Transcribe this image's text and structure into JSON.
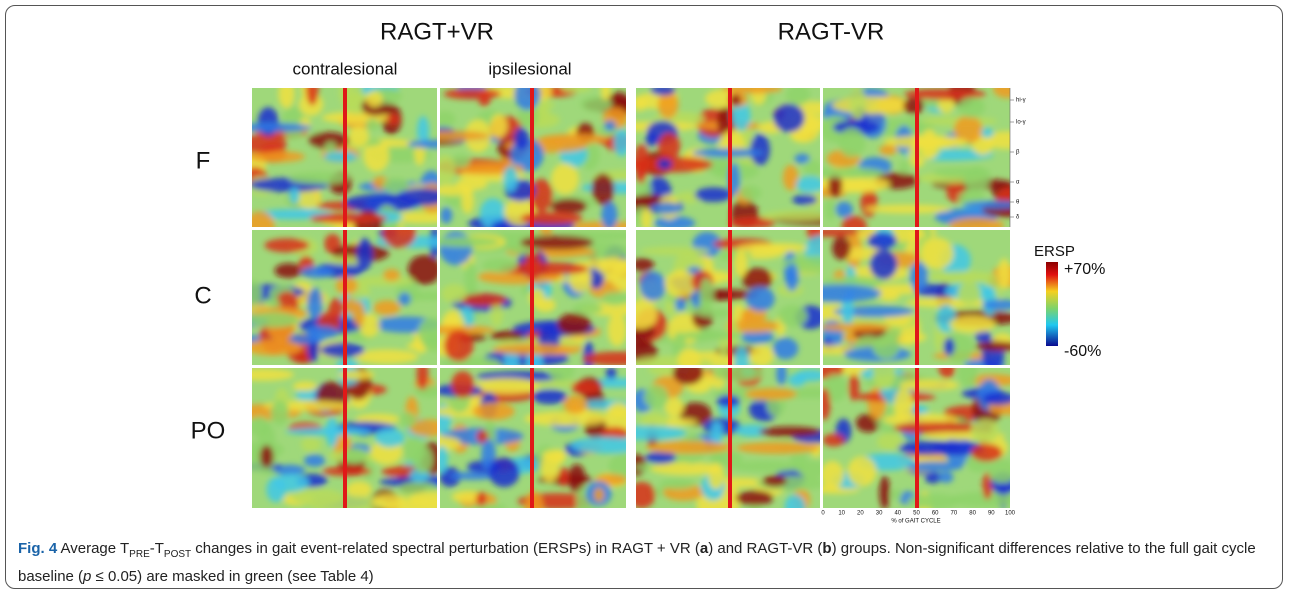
{
  "figure": {
    "group_titles": [
      "RAGT+VR",
      "RAGT-VR"
    ],
    "column_labels": [
      "contralesional",
      "ipsilesional"
    ],
    "row_labels": [
      "F",
      "C",
      "PO"
    ],
    "colorbar": {
      "label": "ERSP",
      "max_label": "+70%",
      "min_label": "-60%"
    },
    "band_labels": [
      "hi-γ",
      "lo-γ",
      "β",
      "α",
      "θ",
      "δ"
    ],
    "x_axis": {
      "ticks": [
        0,
        10,
        20,
        30,
        40,
        50,
        60,
        70,
        80,
        90,
        100
      ],
      "label": "% of GAIT CYCLE"
    }
  },
  "caption": [
    "Fig. 4",
    " Average T",
    "PRE",
    "-T",
    "POST",
    " changes in gait event-related spectral perturbation (ERSPs) in RAGT + VR (",
    "a",
    ") and RAGT-VR (",
    "b",
    ") groups. Non-significant differences relative to the full gait cycle baseline (",
    "p",
    " ≤ 0.05) are masked in green (see Table 4)"
  ]
}
